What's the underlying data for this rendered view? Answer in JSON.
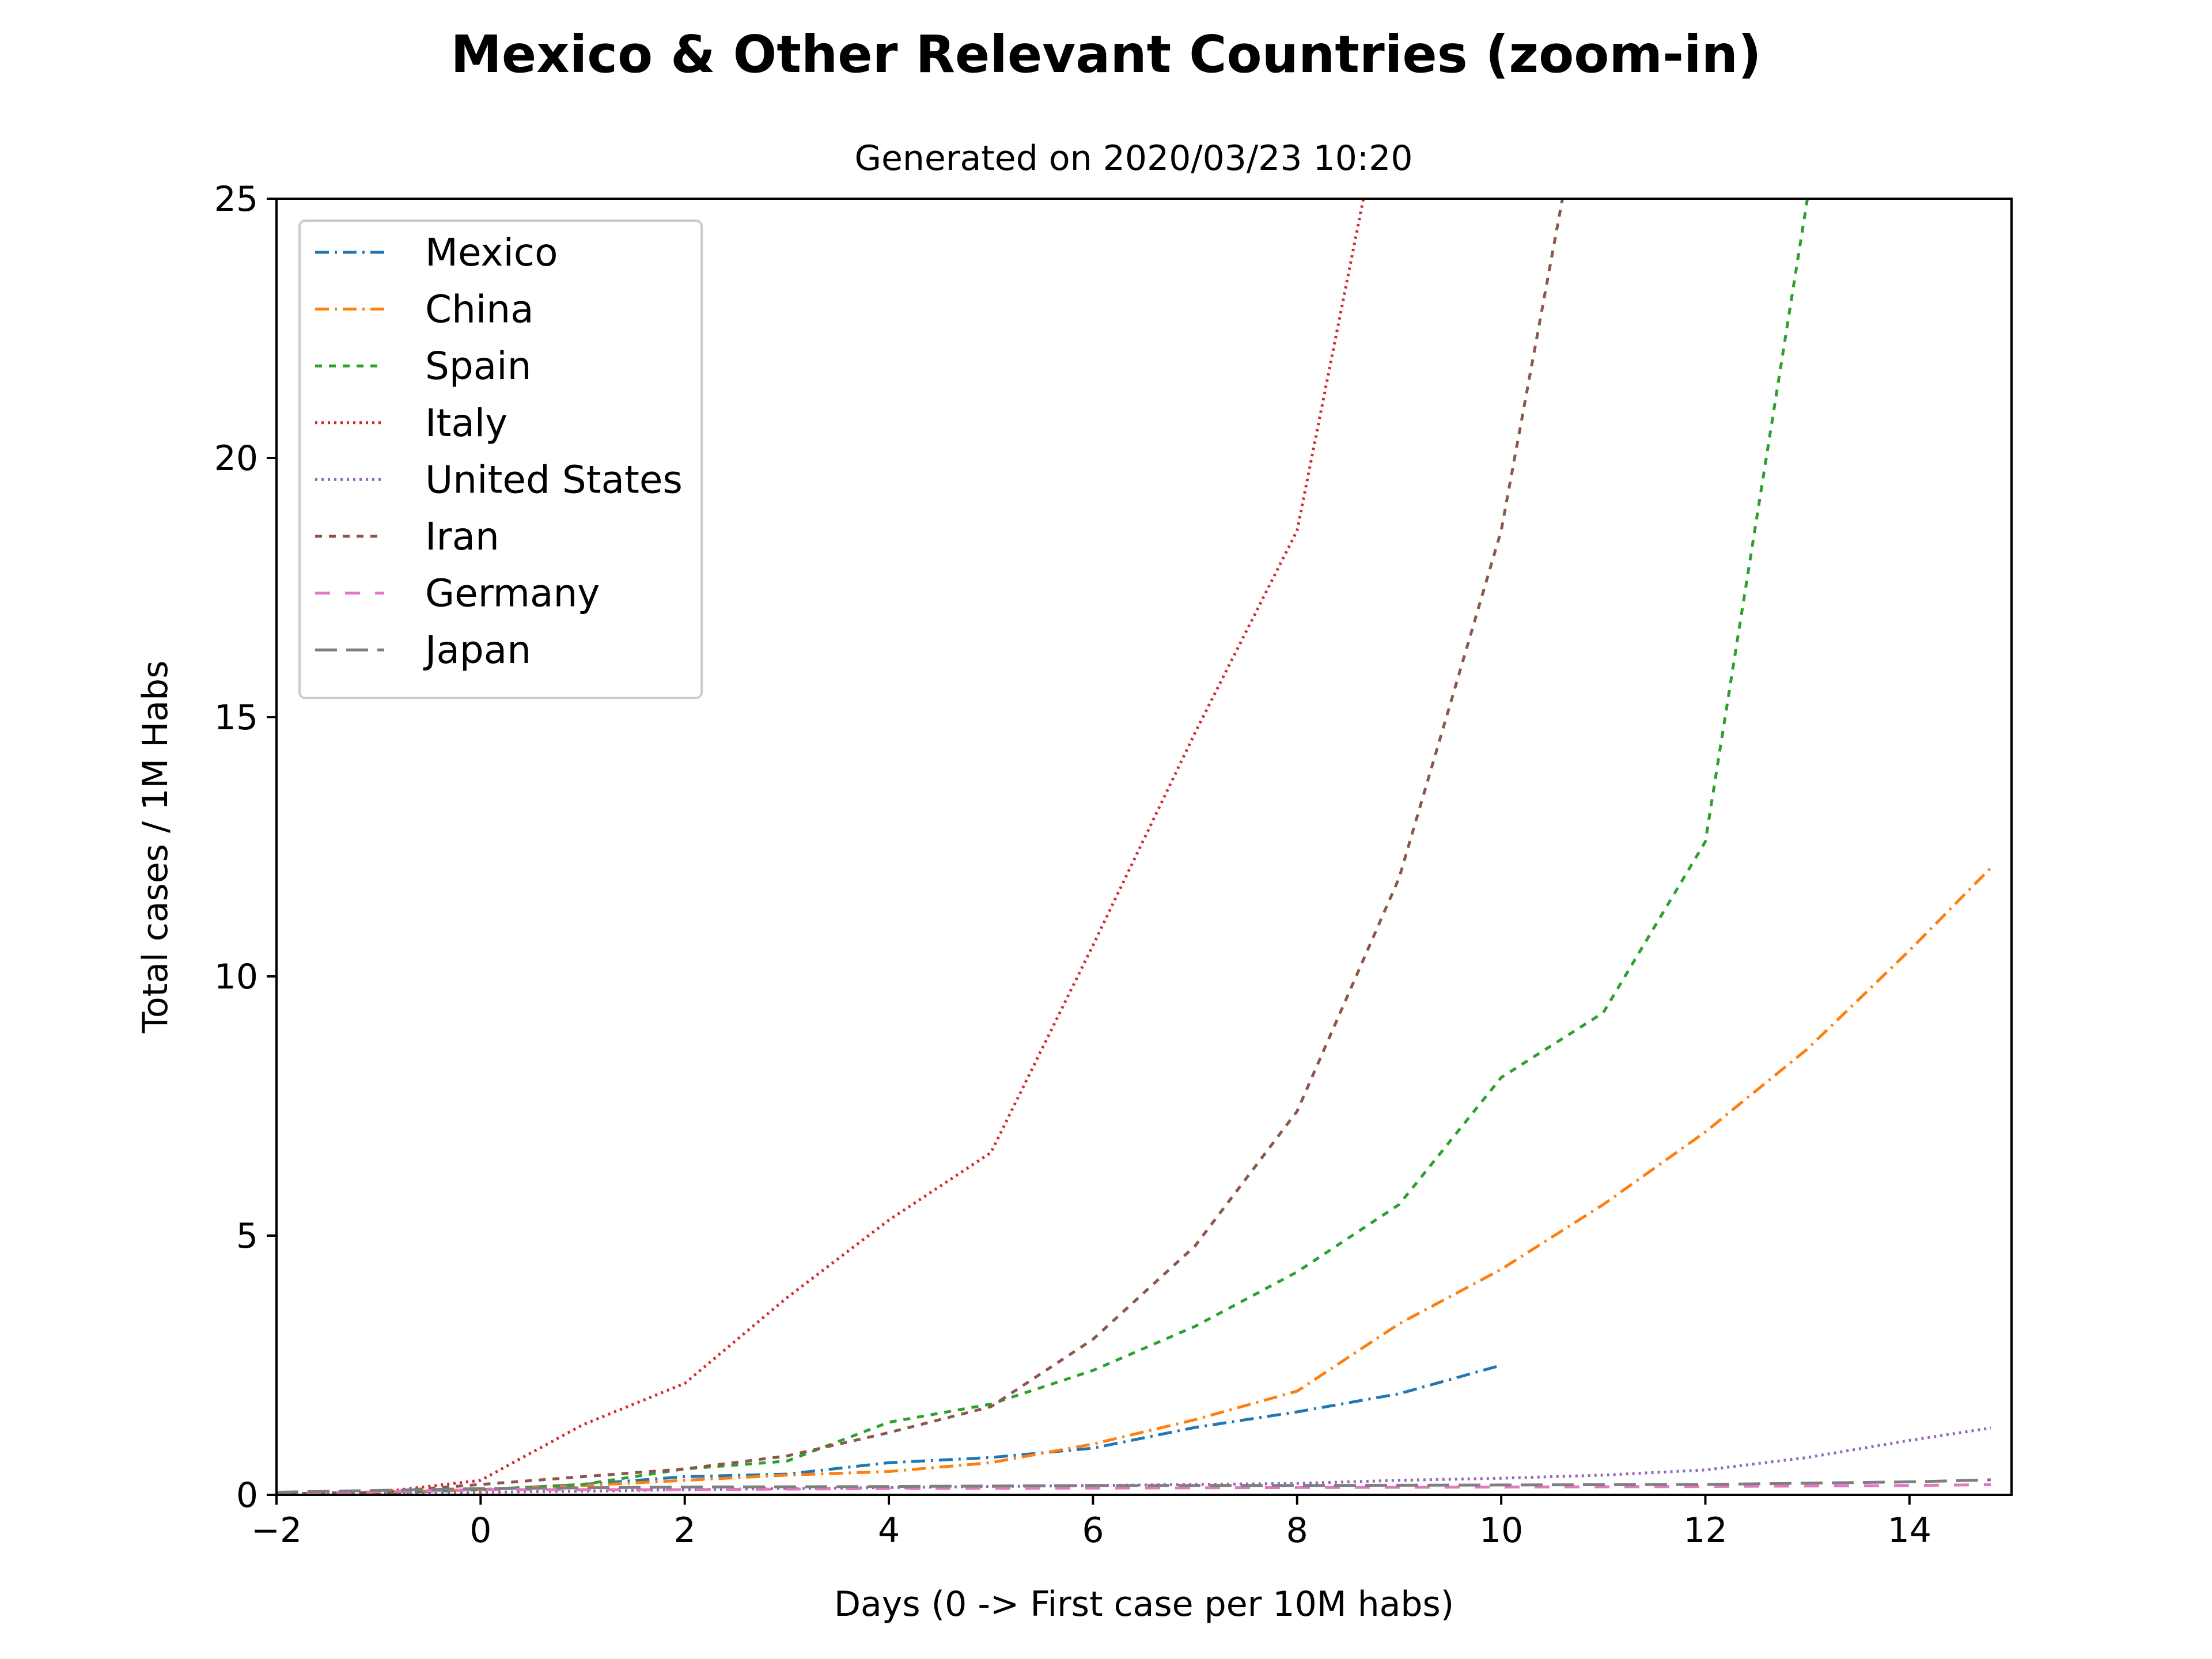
{
  "chart_data": {
    "type": "line",
    "title": "Mexico & Other Relevant Countries (zoom-in)",
    "subtitle": "Generated on 2020/03/23 10:20",
    "xlabel": "Days (0 -> First case per 10M habs)",
    "ylabel": "Total cases / 1M Habs",
    "xlim": [
      -2,
      15
    ],
    "ylim": [
      0,
      25
    ],
    "xticks": [
      -2,
      0,
      2,
      4,
      6,
      8,
      10,
      12,
      14
    ],
    "xtick_labels": [
      "−2",
      "0",
      "2",
      "4",
      "6",
      "8",
      "10",
      "12",
      "14"
    ],
    "yticks": [
      0,
      5,
      10,
      15,
      20,
      25
    ],
    "ytick_labels": [
      "0",
      "5",
      "10",
      "15",
      "20",
      "25"
    ],
    "grid": false,
    "legend_position": "top-left",
    "series": [
      {
        "name": "Mexico",
        "color": "#1f77b4",
        "dash": "dashdot",
        "x": [
          -2,
          -1,
          0,
          1,
          2,
          3,
          4,
          5,
          6,
          7,
          8,
          9,
          10
        ],
        "y": [
          0.02,
          0.03,
          0.1,
          0.2,
          0.35,
          0.4,
          0.62,
          0.72,
          0.9,
          1.3,
          1.6,
          1.95,
          2.5
        ]
      },
      {
        "name": "China",
        "color": "#ff7f0e",
        "dash": "dashdot",
        "x": [
          -2,
          -1,
          0,
          1,
          2,
          3,
          4,
          5,
          6,
          7,
          8,
          9,
          10,
          11,
          12,
          13,
          14,
          15
        ],
        "y": [
          0.02,
          0.05,
          0.1,
          0.18,
          0.28,
          0.38,
          0.45,
          0.62,
          0.98,
          1.45,
          2.0,
          3.3,
          4.35,
          5.6,
          7.0,
          8.6,
          10.5,
          12.5
        ]
      },
      {
        "name": "Spain",
        "color": "#2ca02c",
        "dash": "dashed",
        "x": [
          -2,
          -1,
          0,
          1,
          2,
          3,
          4,
          5,
          6,
          7,
          8,
          9,
          10,
          11,
          12,
          13
        ],
        "y": [
          0.02,
          0.05,
          0.1,
          0.2,
          0.5,
          0.65,
          1.4,
          1.75,
          2.4,
          3.25,
          4.3,
          5.6,
          8.05,
          9.3,
          12.6,
          25.0
        ]
      },
      {
        "name": "Italy",
        "color": "#d62728",
        "dash": "dotted",
        "x": [
          -2,
          -1,
          0,
          1,
          2,
          3,
          4,
          5,
          6,
          7,
          8,
          8.65
        ],
        "y": [
          0.02,
          0.05,
          0.28,
          1.35,
          2.15,
          3.8,
          5.3,
          6.6,
          10.6,
          14.7,
          18.6,
          25.0
        ]
      },
      {
        "name": "United States",
        "color": "#9467bd",
        "dash": "dotted",
        "x": [
          -2,
          -1,
          0,
          1,
          2,
          3,
          4,
          5,
          6,
          7,
          8,
          9,
          10,
          11,
          12,
          13,
          14,
          15
        ],
        "y": [
          0.02,
          0.03,
          0.05,
          0.07,
          0.1,
          0.12,
          0.14,
          0.16,
          0.18,
          0.2,
          0.22,
          0.28,
          0.32,
          0.38,
          0.48,
          0.72,
          1.05,
          1.35
        ]
      },
      {
        "name": "Iran",
        "color": "#8c564b",
        "dash": "dashed",
        "x": [
          -2,
          -1,
          0,
          1,
          2,
          3,
          4,
          5,
          6,
          7,
          8,
          9,
          10,
          10.6
        ],
        "y": [
          0.02,
          0.05,
          0.2,
          0.35,
          0.5,
          0.75,
          1.2,
          1.7,
          3.0,
          4.8,
          7.4,
          11.9,
          18.6,
          25.0
        ]
      },
      {
        "name": "Germany",
        "color": "#e377c2",
        "dash": "longdash",
        "x": [
          -2,
          0,
          2,
          4,
          6,
          8,
          10,
          12,
          14,
          15
        ],
        "y": [
          0.02,
          0.1,
          0.1,
          0.12,
          0.13,
          0.14,
          0.15,
          0.16,
          0.18,
          0.2
        ]
      },
      {
        "name": "Japan",
        "color": "#7f7f7f",
        "dash": "longdash2",
        "x": [
          -2,
          0,
          2,
          4,
          6,
          8,
          10,
          12,
          14,
          15
        ],
        "y": [
          0.05,
          0.12,
          0.15,
          0.16,
          0.18,
          0.18,
          0.19,
          0.2,
          0.25,
          0.3
        ]
      }
    ]
  }
}
